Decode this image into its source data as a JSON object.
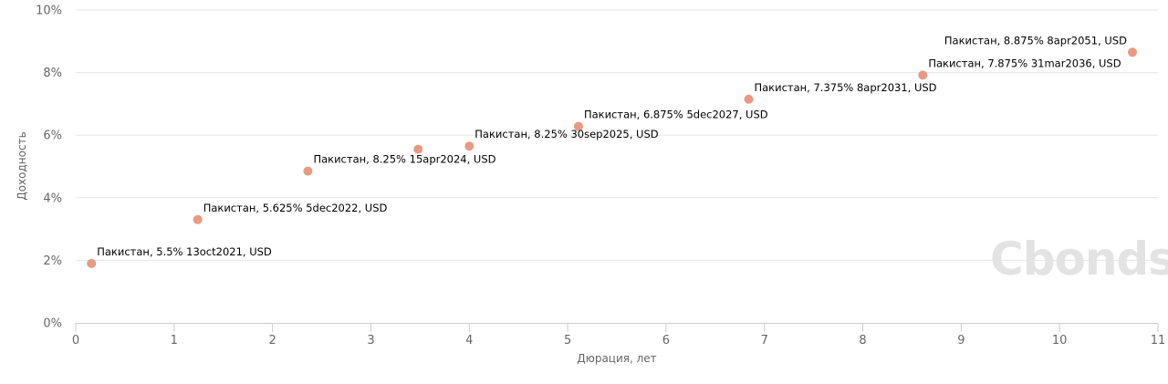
{
  "chart_data": {
    "type": "scatter",
    "xlabel": "Дюрация, лет",
    "ylabel": "Доходность",
    "xlim": [
      0,
      11
    ],
    "ylim": [
      0,
      10
    ],
    "x_ticks": [
      "0",
      "1",
      "2",
      "3",
      "4",
      "5",
      "6",
      "7",
      "8",
      "9",
      "10",
      "11"
    ],
    "y_ticks": [
      "0%",
      "2%",
      "4%",
      "6%",
      "8%",
      "10%"
    ],
    "grid": "horizontal",
    "point_color": "#e89a82",
    "points": [
      {
        "x": 0.16,
        "y": 1.9,
        "label": "Пакистан, 5.5% 13oct2021, USD"
      },
      {
        "x": 1.24,
        "y": 3.3,
        "label": "Пакистан, 5.625% 5dec2022, USD"
      },
      {
        "x": 2.36,
        "y": 4.85,
        "label": "Пакистан, 8.25% 15apr2024, USD"
      },
      {
        "x": 3.48,
        "y": 5.55,
        "label": ""
      },
      {
        "x": 4.0,
        "y": 5.65,
        "label": "Пакистан, 8.25% 30sep2025, USD"
      },
      {
        "x": 5.11,
        "y": 6.28,
        "label": "Пакистан, 6.875% 5dec2027, USD"
      },
      {
        "x": 6.84,
        "y": 7.15,
        "label": "Пакистан, 7.375% 8apr2031, USD"
      },
      {
        "x": 8.61,
        "y": 7.92,
        "label": "Пакистан, 7.875% 31mar2036, USD"
      },
      {
        "x": 10.74,
        "y": 8.65,
        "label": "Пакистан, 8.875% 8apr2051, USD"
      }
    ]
  },
  "watermark": {
    "text": "Cbonds",
    "color": "#e3e3e3"
  }
}
